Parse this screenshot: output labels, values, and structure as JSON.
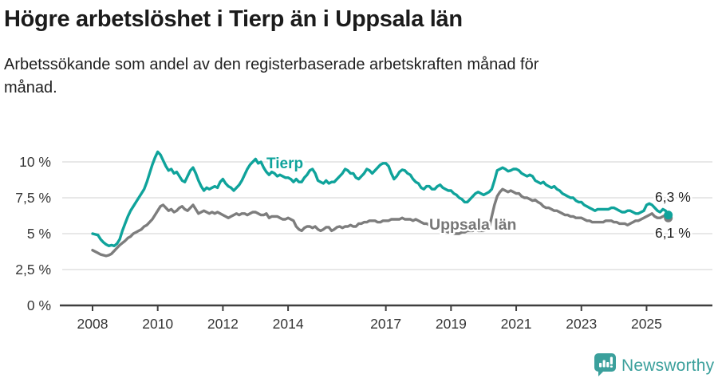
{
  "header": {
    "title": "Högre arbetslöshet i Tierp än i Uppsala län",
    "subtitle": "Arbetssökande som andel av den registerbaserade arbetskraften månad för månad."
  },
  "branding": {
    "logo_text": "Newsworthy",
    "logo_icon": "newsworthy-speech-bubble-bar-chart-icon",
    "logo_color": "#3ba09c"
  },
  "colors": {
    "tierp": "#0fa39b",
    "uppsala": "#7d7d7d",
    "uppsala_label": "#777777",
    "grid": "#d9d9d9",
    "axis": "#3f3f3f",
    "tick_text": "#363636",
    "value_label_text": "#222222",
    "background": "#ffffff"
  },
  "chart_data": {
    "type": "line",
    "title": "Högre arbetslöshet i Tierp än i Uppsala län",
    "subtitle": "Arbetssökande som andel av den registerbaserade arbetskraften månad för månad.",
    "frequency": "monthly",
    "x_start": "2008-01",
    "x_end": "2025-09",
    "x_tick_years": [
      2008,
      2010,
      2012,
      2014,
      2017,
      2019,
      2021,
      2023,
      2025
    ],
    "x_tick_labels": [
      "2008",
      "2010",
      "2012",
      "2014",
      "2017",
      "2019",
      "2021",
      "2023",
      "2025"
    ],
    "y_tick_values": [
      0,
      2.5,
      5,
      7.5,
      10
    ],
    "y_tick_labels": [
      "0 %",
      "2,5 %",
      "5 %",
      "7,5 %",
      "10 %"
    ],
    "ylim": [
      0,
      11.2
    ],
    "grid": "horizontal",
    "legend_position": "inline-labels",
    "series": [
      {
        "name": "Uppsala län",
        "end_label": "6,1 %",
        "end_value": 6.1,
        "values": [
          3.85,
          3.75,
          3.65,
          3.55,
          3.5,
          3.45,
          3.5,
          3.6,
          3.8,
          4.0,
          4.2,
          4.35,
          4.5,
          4.7,
          4.8,
          5.0,
          5.1,
          5.2,
          5.3,
          5.5,
          5.6,
          5.8,
          6.0,
          6.3,
          6.6,
          6.9,
          7.0,
          6.8,
          6.6,
          6.7,
          6.5,
          6.6,
          6.8,
          6.9,
          6.7,
          6.6,
          6.8,
          7.0,
          6.7,
          6.4,
          6.5,
          6.6,
          6.5,
          6.4,
          6.5,
          6.4,
          6.5,
          6.4,
          6.3,
          6.2,
          6.1,
          6.2,
          6.3,
          6.4,
          6.3,
          6.4,
          6.4,
          6.3,
          6.4,
          6.5,
          6.5,
          6.4,
          6.3,
          6.3,
          6.4,
          6.1,
          6.2,
          6.2,
          6.2,
          6.1,
          6.0,
          6.0,
          6.1,
          6.0,
          5.9,
          5.5,
          5.3,
          5.2,
          5.4,
          5.5,
          5.5,
          5.4,
          5.5,
          5.3,
          5.2,
          5.3,
          5.45,
          5.45,
          5.2,
          5.3,
          5.45,
          5.5,
          5.4,
          5.5,
          5.5,
          5.6,
          5.5,
          5.5,
          5.7,
          5.7,
          5.8,
          5.8,
          5.9,
          5.9,
          5.9,
          5.8,
          5.8,
          5.9,
          5.9,
          5.9,
          6.0,
          6.0,
          6.0,
          6.0,
          6.1,
          6.0,
          6.0,
          6.0,
          5.9,
          6.0,
          5.9,
          5.8,
          5.7,
          5.7,
          5.6,
          5.5,
          5.4,
          5.4,
          5.3,
          5.2,
          5.2,
          5.1,
          5.1,
          5.0,
          5.0,
          5.0,
          5.1,
          5.1,
          5.2,
          5.2,
          5.2,
          5.3,
          5.2,
          5.2,
          5.2,
          5.3,
          5.4,
          6.2,
          7.0,
          7.6,
          7.9,
          8.1,
          8.0,
          7.9,
          8.0,
          7.9,
          7.8,
          7.8,
          7.6,
          7.5,
          7.5,
          7.4,
          7.3,
          7.35,
          7.2,
          7.1,
          6.9,
          6.8,
          6.8,
          6.7,
          6.6,
          6.6,
          6.5,
          6.4,
          6.3,
          6.3,
          6.2,
          6.2,
          6.1,
          6.1,
          6.1,
          6.0,
          5.9,
          5.9,
          5.8,
          5.8,
          5.8,
          5.8,
          5.8,
          5.9,
          5.9,
          5.9,
          5.8,
          5.8,
          5.7,
          5.7,
          5.7,
          5.6,
          5.7,
          5.8,
          5.9,
          5.9,
          6.0,
          6.1,
          6.2,
          6.3,
          6.4,
          6.2,
          6.1,
          6.1,
          6.2,
          6.3,
          6.1
        ]
      },
      {
        "name": "Tierp",
        "end_label": "6,3 %",
        "end_value": 6.3,
        "values": [
          5.0,
          4.95,
          4.9,
          4.6,
          4.4,
          4.25,
          4.15,
          4.2,
          4.15,
          4.3,
          4.6,
          5.2,
          5.7,
          6.2,
          6.6,
          6.9,
          7.2,
          7.5,
          7.8,
          8.1,
          8.6,
          9.2,
          9.8,
          10.3,
          10.7,
          10.5,
          10.1,
          9.7,
          9.4,
          9.5,
          9.2,
          9.3,
          9.0,
          8.7,
          8.6,
          9.0,
          9.4,
          9.6,
          9.2,
          8.7,
          8.3,
          8.0,
          8.2,
          8.1,
          8.2,
          8.3,
          8.2,
          8.6,
          8.8,
          8.5,
          8.3,
          8.2,
          8.0,
          8.2,
          8.4,
          8.7,
          9.1,
          9.5,
          9.8,
          10.0,
          10.2,
          9.9,
          10.0,
          9.6,
          9.3,
          9.1,
          9.3,
          9.2,
          9.0,
          9.1,
          9.0,
          8.9,
          8.9,
          8.8,
          8.6,
          8.8,
          8.6,
          8.6,
          8.9,
          9.1,
          9.4,
          9.5,
          9.2,
          8.7,
          8.6,
          8.5,
          8.7,
          8.5,
          8.6,
          8.6,
          8.8,
          9.0,
          9.2,
          9.5,
          9.4,
          9.2,
          9.2,
          8.9,
          8.8,
          9.0,
          9.2,
          9.5,
          9.4,
          9.2,
          9.4,
          9.6,
          9.8,
          9.9,
          9.9,
          9.7,
          9.2,
          8.8,
          9.0,
          9.3,
          9.45,
          9.4,
          9.2,
          9.1,
          8.8,
          8.6,
          8.5,
          8.2,
          8.1,
          8.3,
          8.3,
          8.1,
          8.1,
          8.3,
          8.4,
          8.2,
          8.1,
          8.0,
          8.0,
          7.8,
          7.7,
          7.5,
          7.4,
          7.2,
          7.2,
          7.4,
          7.6,
          7.8,
          7.9,
          7.8,
          7.7,
          7.8,
          7.9,
          8.1,
          8.7,
          9.4,
          9.5,
          9.6,
          9.5,
          9.35,
          9.4,
          9.5,
          9.5,
          9.4,
          9.2,
          9.1,
          9.0,
          9.1,
          9.0,
          8.7,
          8.6,
          8.5,
          8.6,
          8.4,
          8.3,
          8.2,
          8.3,
          8.1,
          8.0,
          7.8,
          7.7,
          7.6,
          7.5,
          7.5,
          7.3,
          7.2,
          7.2,
          7.0,
          6.9,
          6.8,
          6.7,
          6.6,
          6.7,
          6.7,
          6.7,
          6.7,
          6.7,
          6.8,
          6.8,
          6.7,
          6.6,
          6.5,
          6.5,
          6.6,
          6.6,
          6.5,
          6.4,
          6.4,
          6.5,
          6.6,
          7.0,
          7.1,
          7.0,
          6.8,
          6.6,
          6.5,
          6.7,
          6.6,
          6.3
        ]
      }
    ],
    "annotations": [
      {
        "text": "Tierp",
        "series": "Tierp"
      },
      {
        "text": "Uppsala län",
        "series": "Uppsala län"
      },
      {
        "text": "6,3 %",
        "series": "Tierp"
      },
      {
        "text": "6,1 %",
        "series": "Uppsala län"
      }
    ]
  }
}
